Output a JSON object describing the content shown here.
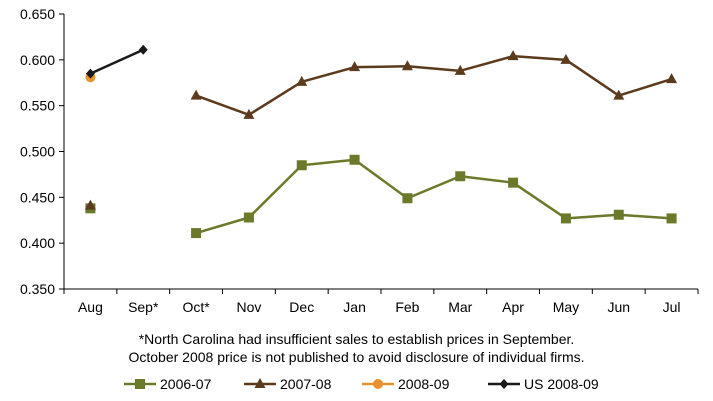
{
  "chart_data": {
    "type": "line",
    "categories": [
      "Aug",
      "Sep*",
      "Oct*",
      "Nov",
      "Dec",
      "Jan",
      "Feb",
      "Mar",
      "Apr",
      "May",
      "Jun",
      "Jul"
    ],
    "yticks": [
      "0.350",
      "0.400",
      "0.450",
      "0.500",
      "0.550",
      "0.600",
      "0.650"
    ],
    "ylim": [
      0.35,
      0.65
    ],
    "grid": false,
    "legend_position": "bottom",
    "series": [
      {
        "name": "2006-07",
        "color": "#6b7a2a",
        "marker": "square",
        "values": [
          0.438,
          null,
          0.411,
          0.428,
          0.485,
          0.491,
          0.449,
          0.473,
          0.466,
          0.427,
          0.431,
          0.427
        ]
      },
      {
        "name": "2007-08",
        "color": "#5c3a1e",
        "marker": "triangle",
        "values": [
          0.441,
          null,
          0.561,
          0.54,
          0.576,
          0.592,
          0.593,
          0.588,
          0.604,
          0.6,
          0.561,
          0.579
        ]
      },
      {
        "name": "2008-09",
        "color": "#e8912e",
        "marker": "circle",
        "values": [
          0.581,
          null,
          null,
          null,
          null,
          null,
          null,
          null,
          null,
          null,
          null,
          null
        ]
      },
      {
        "name": "US 2008-09",
        "color": "#1a1a1a",
        "marker": "diamond",
        "values": [
          0.585,
          0.611,
          null,
          null,
          null,
          null,
          null,
          null,
          null,
          null,
          null,
          null
        ]
      }
    ]
  },
  "footnote": {
    "line1": "*North Carolina had insufficient sales to establish prices in September.",
    "line2": "October 2008 price is not published to avoid disclosure of individual firms."
  }
}
